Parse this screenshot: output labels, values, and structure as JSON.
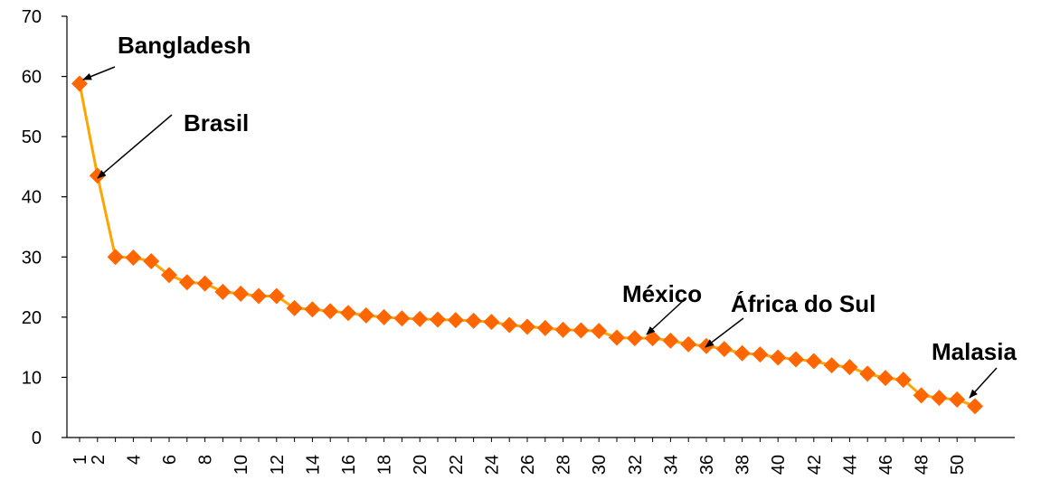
{
  "chart_data": {
    "type": "line",
    "title": "",
    "xlabel": "",
    "ylabel": "",
    "ylim": [
      0,
      70
    ],
    "yticks": [
      0,
      10,
      20,
      30,
      40,
      50,
      60,
      70
    ],
    "x": [
      1,
      2,
      3,
      4,
      5,
      6,
      7,
      8,
      9,
      10,
      11,
      12,
      13,
      14,
      15,
      16,
      17,
      18,
      19,
      20,
      21,
      22,
      23,
      24,
      25,
      26,
      27,
      28,
      29,
      30,
      31,
      32,
      33,
      34,
      35,
      36,
      37,
      38,
      39,
      40,
      41,
      42,
      43,
      44,
      45,
      46,
      47,
      48,
      49,
      50,
      51
    ],
    "xtick_labels": [
      "1",
      "2",
      "4",
      "6",
      "8",
      "10",
      "12",
      "14",
      "16",
      "18",
      "20",
      "22",
      "24",
      "26",
      "28",
      "30",
      "32",
      "34",
      "36",
      "38",
      "40",
      "42",
      "44",
      "46",
      "48",
      "50"
    ],
    "series": [
      {
        "values": [
          58.8,
          43.5,
          30,
          29.9,
          29.3,
          27,
          25.8,
          25.6,
          24.2,
          23.9,
          23.5,
          23.5,
          21.5,
          21.3,
          21,
          20.7,
          20.3,
          20,
          19.8,
          19.7,
          19.6,
          19.5,
          19.4,
          19.2,
          18.7,
          18.4,
          18.2,
          17.9,
          17.8,
          17.7,
          16.6,
          16.5,
          16.5,
          16.1,
          15.5,
          15.2,
          14.7,
          14,
          13.8,
          13.3,
          13,
          12.7,
          12,
          11.7,
          10.6,
          9.9,
          9.6,
          7,
          6.6,
          6.3,
          5.2
        ],
        "color": "#FF6600",
        "line_color": "#FFA500"
      }
    ],
    "annotations": [
      {
        "text": "Bangladesh",
        "x": 1,
        "y": 58.8
      },
      {
        "text": "Brasil",
        "x": 2,
        "y": 43.5
      },
      {
        "text": "México",
        "x": 32,
        "y": 16.5
      },
      {
        "text": "África do Sul",
        "x": 35,
        "y": 15.5
      },
      {
        "text": "Malasia",
        "x": 50,
        "y": 6.3
      }
    ],
    "grid": false,
    "legend": "none"
  }
}
